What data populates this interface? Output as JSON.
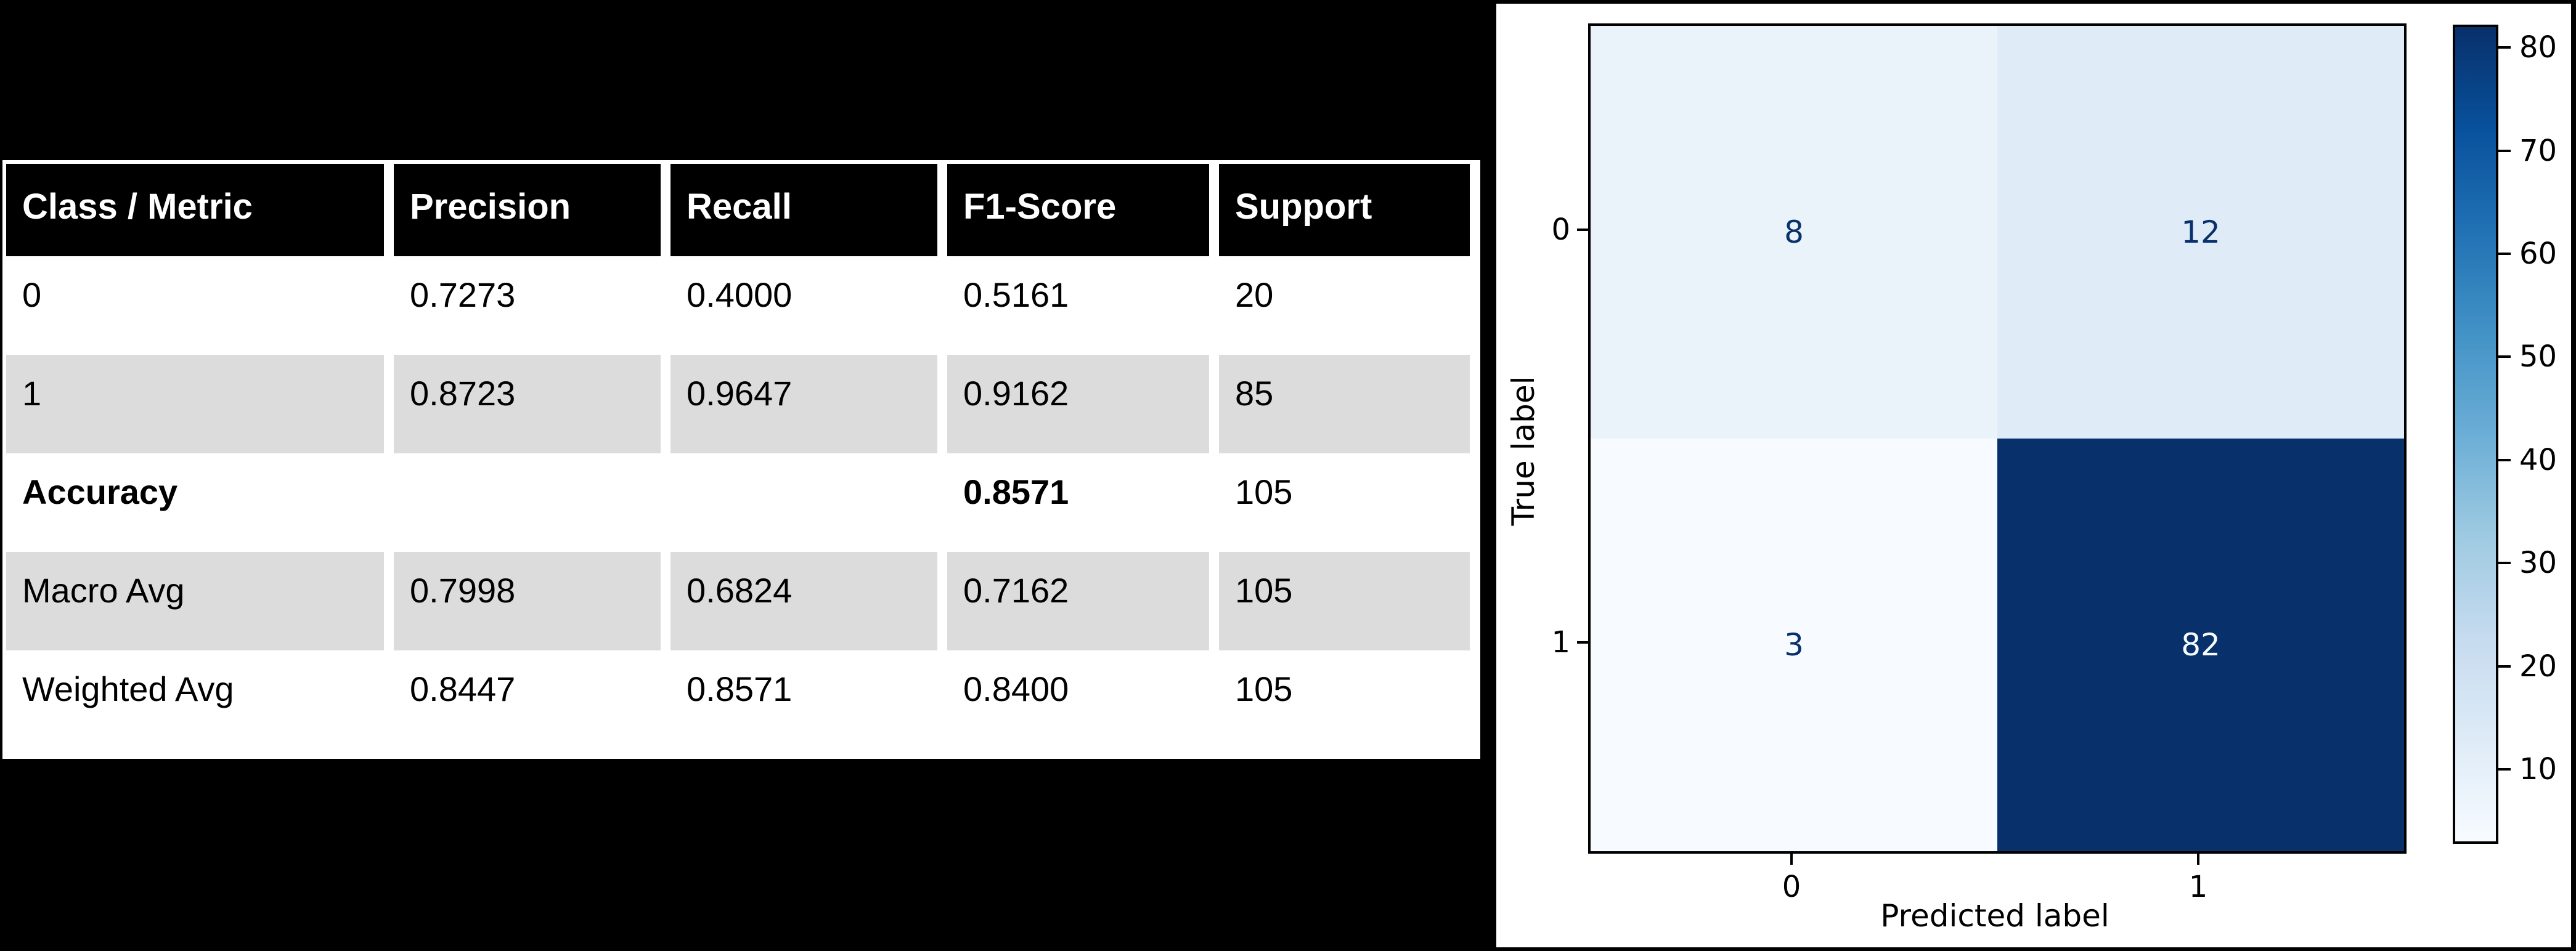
{
  "colors": {
    "slide_background": "#000000",
    "panel_background": "#ffffff",
    "table_header_bg": "#000000",
    "table_header_text": "#ffffff",
    "table_shaded_row": "#dcdcdc",
    "table_text": "#000000",
    "axis_color": "#000000",
    "annotation_dark": "#08306b",
    "annotation_light": "#f7fbff"
  },
  "metrics_table": {
    "headers": [
      "Class / Metric",
      "Precision",
      "Recall",
      "F1-Score",
      "Support"
    ],
    "rows": [
      {
        "cells": [
          "0",
          "0.7273",
          "0.4000",
          "0.5161",
          "20"
        ],
        "shaded": false,
        "bold_cells": []
      },
      {
        "cells": [
          "1",
          "0.8723",
          "0.9647",
          "0.9162",
          "85"
        ],
        "shaded": true,
        "bold_cells": []
      },
      {
        "cells": [
          "Accuracy",
          "",
          "",
          "0.8571",
          "105"
        ],
        "shaded": false,
        "bold_cells": [
          0,
          3
        ]
      },
      {
        "cells": [
          "Macro Avg",
          "0.7998",
          "0.6824",
          "0.7162",
          "105"
        ],
        "shaded": true,
        "bold_cells": []
      },
      {
        "cells": [
          "Weighted Avg",
          "0.8447",
          "0.8571",
          "0.8400",
          "105"
        ],
        "shaded": false,
        "bold_cells": []
      }
    ]
  },
  "chart_data": {
    "type": "heatmap",
    "title": "",
    "xlabel": "Predicted label",
    "ylabel": "True label",
    "x_tick_labels": [
      "0",
      "1"
    ],
    "y_tick_labels": [
      "0",
      "1"
    ],
    "matrix": [
      [
        8,
        12
      ],
      [
        3,
        82
      ]
    ],
    "colormap": "Blues",
    "vmin": 3,
    "vmax": 82,
    "colorbar_ticks": [
      10,
      20,
      30,
      40,
      50,
      60,
      70,
      80
    ],
    "legend_position": "right-colorbar",
    "grid": false,
    "cell_colors": [
      [
        "#eaf2fa",
        "#dfebf7"
      ],
      [
        "#f7fbff",
        "#08306b"
      ]
    ],
    "cell_text_colors": [
      [
        "#08306b",
        "#08306b"
      ],
      [
        "#08306b",
        "#f7fbff"
      ]
    ],
    "colorbar_gradient": [
      {
        "pos": 0,
        "color": "#f7fbff"
      },
      {
        "pos": 12.5,
        "color": "#deebf7"
      },
      {
        "pos": 25,
        "color": "#c6dbef"
      },
      {
        "pos": 37.5,
        "color": "#9ecae1"
      },
      {
        "pos": 50,
        "color": "#6baed6"
      },
      {
        "pos": 62.5,
        "color": "#4292c6"
      },
      {
        "pos": 75,
        "color": "#2171b5"
      },
      {
        "pos": 87.5,
        "color": "#08519c"
      },
      {
        "pos": 100,
        "color": "#08306b"
      }
    ]
  }
}
